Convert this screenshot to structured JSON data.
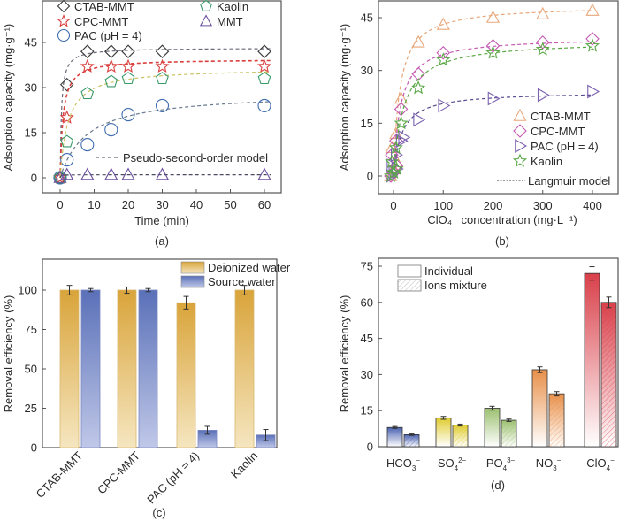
{
  "chart_data": [
    {
      "id": "a",
      "type": "scatter",
      "panel_label": "(a)",
      "xlabel": "Time (min)",
      "ylabel": "Adsorption capacity (mg·g⁻¹)",
      "xlim": [
        -4,
        66
      ],
      "ylim": [
        -5,
        55
      ],
      "xticks": [
        0,
        10,
        20,
        30,
        40,
        50,
        60
      ],
      "yticks": [
        0,
        15,
        30,
        45
      ],
      "model_label": "Pseudo-second-order model",
      "legend_position": "top",
      "series": [
        {
          "name": "CTAB-MMT",
          "marker": "diamond",
          "color": "#3a3a3a",
          "line_color": "#6a6a7a",
          "x": [
            0,
            2,
            8,
            15,
            20,
            30,
            60
          ],
          "y": [
            0,
            31,
            42,
            42,
            42,
            42,
            42
          ],
          "qe": 43.2,
          "k": 0.06
        },
        {
          "name": "CPC-MMT",
          "marker": "star",
          "color": "#d9413f",
          "line_color": "#d9413f",
          "x": [
            0,
            2,
            8,
            15,
            20,
            30,
            60
          ],
          "y": [
            0,
            20,
            37,
            37,
            37,
            37,
            37
          ],
          "qe": 39.5,
          "k": 0.03
        },
        {
          "name": "PAC (pH = 4)",
          "marker": "circle",
          "color": "#3f6db0",
          "line_color": "#6a7a90",
          "x": [
            0,
            2,
            8,
            15,
            20,
            30,
            60
          ],
          "y": [
            0,
            6,
            11,
            16,
            21,
            24,
            24
          ],
          "qe": 28.5,
          "k": 0.0045
        },
        {
          "name": "Kaolin",
          "marker": "pentagon",
          "color": "#3a9a6a",
          "line_color": "#c8c060",
          "x": [
            0,
            2,
            8,
            15,
            20,
            30,
            60
          ],
          "y": [
            0,
            12,
            28,
            32,
            33,
            33,
            33
          ],
          "qe": 36.5,
          "k": 0.012
        },
        {
          "name": "MMT",
          "marker": "triangle",
          "color": "#6a4fa0",
          "line_color": "#4a4a60",
          "x": [
            0,
            2,
            8,
            15,
            20,
            30,
            60
          ],
          "y": [
            0,
            1,
            1,
            1,
            1,
            1,
            1
          ],
          "qe": 1,
          "k": 5
        }
      ]
    },
    {
      "id": "b",
      "type": "scatter",
      "panel_label": "(b)",
      "xlabel": "ClO₄⁻ concentration (mg·L⁻¹)",
      "ylabel": "Adsorption capacity (mg·g⁻¹)",
      "xlim": [
        -30,
        430
      ],
      "ylim": [
        -5,
        50
      ],
      "xticks": [
        0,
        100,
        200,
        300,
        400
      ],
      "yticks": [
        0,
        15,
        30,
        45
      ],
      "model_label": "Langmuir model",
      "legend_position": "bottom-right",
      "series": [
        {
          "name": "CTAB-MMT",
          "marker": "triangle",
          "color": "#e8a77a",
          "line_color": "#e8a77a",
          "x": [
            0,
            0.5,
            1,
            2,
            5,
            10,
            50,
            100,
            200,
            300,
            400
          ],
          "y": [
            0,
            2,
            4,
            8,
            12,
            22,
            38,
            43,
            45,
            46,
            47
          ],
          "qm": 48.5,
          "kL": 0.08
        },
        {
          "name": "CPC-MMT",
          "marker": "diamond",
          "color": "#c45ab0",
          "line_color": "#c45ab0",
          "x": [
            0,
            0.5,
            1,
            2,
            5,
            10,
            50,
            100,
            200,
            300,
            400
          ],
          "y": [
            0,
            1,
            3,
            6,
            10,
            19,
            29,
            35,
            37,
            38,
            39
          ],
          "qm": 39.5,
          "kL": 0.07
        },
        {
          "name": "PAC (pH = 4)",
          "marker": "triangle-right",
          "color": "#7b62b0",
          "line_color": "#5a4a90",
          "x": [
            0,
            0.5,
            1,
            2,
            5,
            10,
            20,
            50,
            100,
            200,
            300,
            400
          ],
          "y": [
            0,
            1,
            2,
            3,
            6,
            10,
            11,
            16,
            20,
            22,
            23,
            24
          ],
          "qm": 24,
          "kL": 0.06
        },
        {
          "name": "Kaolin",
          "marker": "star",
          "color": "#5aa845",
          "line_color": "#5aa845",
          "x": [
            0,
            0.5,
            1,
            2,
            5,
            10,
            50,
            100,
            200,
            300,
            400
          ],
          "y": [
            0,
            1,
            2,
            4,
            8,
            15,
            25,
            33,
            35,
            36,
            37
          ],
          "qm": 38.5,
          "kL": 0.05
        }
      ]
    },
    {
      "id": "c",
      "type": "bar",
      "panel_label": "(c)",
      "xlabel": "",
      "ylabel": "Removal efficiency (%)",
      "ylim": [
        0,
        120
      ],
      "yticks": [
        0,
        25,
        50,
        75,
        100
      ],
      "categories": [
        "CTAB-MMT",
        "CPC-MMT",
        "PAC (pH = 4)",
        "Kaolin"
      ],
      "legend_position": "top-right",
      "series": [
        {
          "name": "Deionized water",
          "color": "#d9a43a",
          "light": "#f5e6c0",
          "values": [
            100,
            100,
            92,
            100
          ],
          "errors": [
            3,
            2,
            4,
            3
          ]
        },
        {
          "name": "Source water",
          "color": "#5a70b8",
          "light": "#c0c8e8",
          "values": [
            100,
            100,
            11,
            8
          ],
          "errors": [
            1,
            1,
            2.5,
            3.5
          ]
        }
      ]
    },
    {
      "id": "d",
      "type": "bar",
      "panel_label": "(d)",
      "xlabel": "",
      "ylabel": "Removal efficiency (%)",
      "ylim": [
        0,
        78
      ],
      "yticks": [
        0,
        15,
        30,
        45,
        60,
        75
      ],
      "categories": [
        {
          "base": "HCO",
          "sub": "3",
          "sup": "−"
        },
        {
          "base": "SO",
          "sub": "4",
          "sup": "2−"
        },
        {
          "base": "PO",
          "sub": "4",
          "sup": "3−"
        },
        {
          "base": "NO",
          "sub": "3",
          "sup": "−"
        },
        {
          "base": "ClO",
          "sub": "4",
          "sup": "−"
        }
      ],
      "category_colors": [
        "#4a62b0",
        "#e0cc30",
        "#9cc070",
        "#e8904a",
        "#d9404a"
      ],
      "legend_position": "top-left",
      "series": [
        {
          "name": "Individual",
          "pattern": "solid",
          "values": [
            8,
            12,
            16,
            32,
            72
          ],
          "errors": [
            0.4,
            0.6,
            0.8,
            1.2,
            2.8
          ]
        },
        {
          "name": "Ions mixture",
          "pattern": "hatched",
          "values": [
            5,
            9,
            11,
            22,
            60
          ],
          "errors": [
            0.3,
            0.4,
            0.5,
            0.9,
            2.2
          ]
        }
      ]
    }
  ]
}
